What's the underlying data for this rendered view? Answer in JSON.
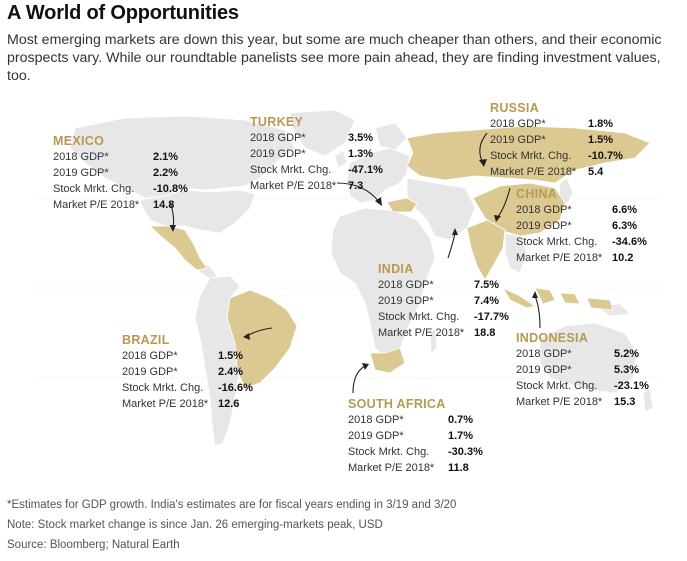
{
  "title": "A World of Opportunities",
  "subtitle": "Most emerging markets are down this year, but some are much cheaper than others, and their economic prospects vary. While our roundtable panelists see more pain ahead, they are finding investment values, too.",
  "colors": {
    "highlight_country": "#dcc992",
    "other_land": "#e7e7e7",
    "country_label": "#b69a54",
    "arrow": "#222222"
  },
  "labels": {
    "gdp2018": "2018 GDP*",
    "gdp2019": "2019 GDP*",
    "stock": "Stock Mrkt. Chg.",
    "pe": "Market P/E 2018*"
  },
  "countries": [
    {
      "name": "MEXICO",
      "gdp2018": "2.1%",
      "gdp2019": "2.2%",
      "stock": "-10.8%",
      "pe": "14.8"
    },
    {
      "name": "TURKEY",
      "gdp2018": "3.5%",
      "gdp2019": "1.3%",
      "stock": "-47.1%",
      "pe": "7.3"
    },
    {
      "name": "RUSSIA",
      "gdp2018": "1.8%",
      "gdp2019": "1.5%",
      "stock": "-10.7%",
      "pe": "5.4"
    },
    {
      "name": "CHINA",
      "gdp2018": "6.6%",
      "gdp2019": "6.3%",
      "stock": "-34.6%",
      "pe": "10.2"
    },
    {
      "name": "INDIA",
      "gdp2018": "7.5%",
      "gdp2019": "7.4%",
      "stock": "-17.7%",
      "pe": "18.8"
    },
    {
      "name": "BRAZIL",
      "gdp2018": "1.5%",
      "gdp2019": "2.4%",
      "stock": "-16.6%",
      "pe": "12.6"
    },
    {
      "name": "INDONESIA",
      "gdp2018": "5.2%",
      "gdp2019": "5.3%",
      "stock": "-23.1%",
      "pe": "15.3"
    },
    {
      "name": "SOUTH AFRICA",
      "gdp2018": "0.7%",
      "gdp2019": "1.7%",
      "stock": "-30.3%",
      "pe": "11.8"
    }
  ],
  "footnotes": [
    "*Estimates for GDP growth. India's estimates are for fiscal years ending in 3/19 and 3/20",
    "Note: Stock market change is since Jan. 26 emerging-markets peak, USD",
    "Source: Bloomberg; Natural Earth"
  ]
}
